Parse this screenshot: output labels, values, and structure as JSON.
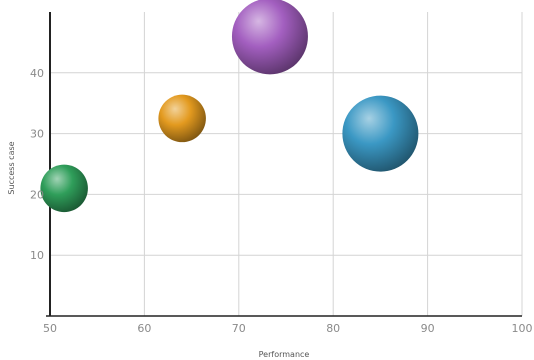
{
  "chart_data": {
    "type": "scatter",
    "variant": "bubble",
    "title": "",
    "xlabel": "Performance",
    "ylabel": "Success case",
    "xlim": [
      50,
      100
    ],
    "ylim": [
      0,
      50
    ],
    "x_ticks": [
      50,
      60,
      70,
      80,
      90,
      100
    ],
    "y_ticks": [
      10,
      20,
      30,
      40
    ],
    "grid": true,
    "legend": "none",
    "series": [
      {
        "x": 51.5,
        "y": 21,
        "size": 2.5,
        "color": "#2f9e5a"
      },
      {
        "x": 64,
        "y": 32.5,
        "size": 2.5,
        "color": "#e39a1f"
      },
      {
        "x": 73.3,
        "y": 46,
        "size": 4,
        "color": "#a35fc0"
      },
      {
        "x": 85,
        "y": 30,
        "size": 4,
        "color": "#3b98c4"
      }
    ]
  }
}
